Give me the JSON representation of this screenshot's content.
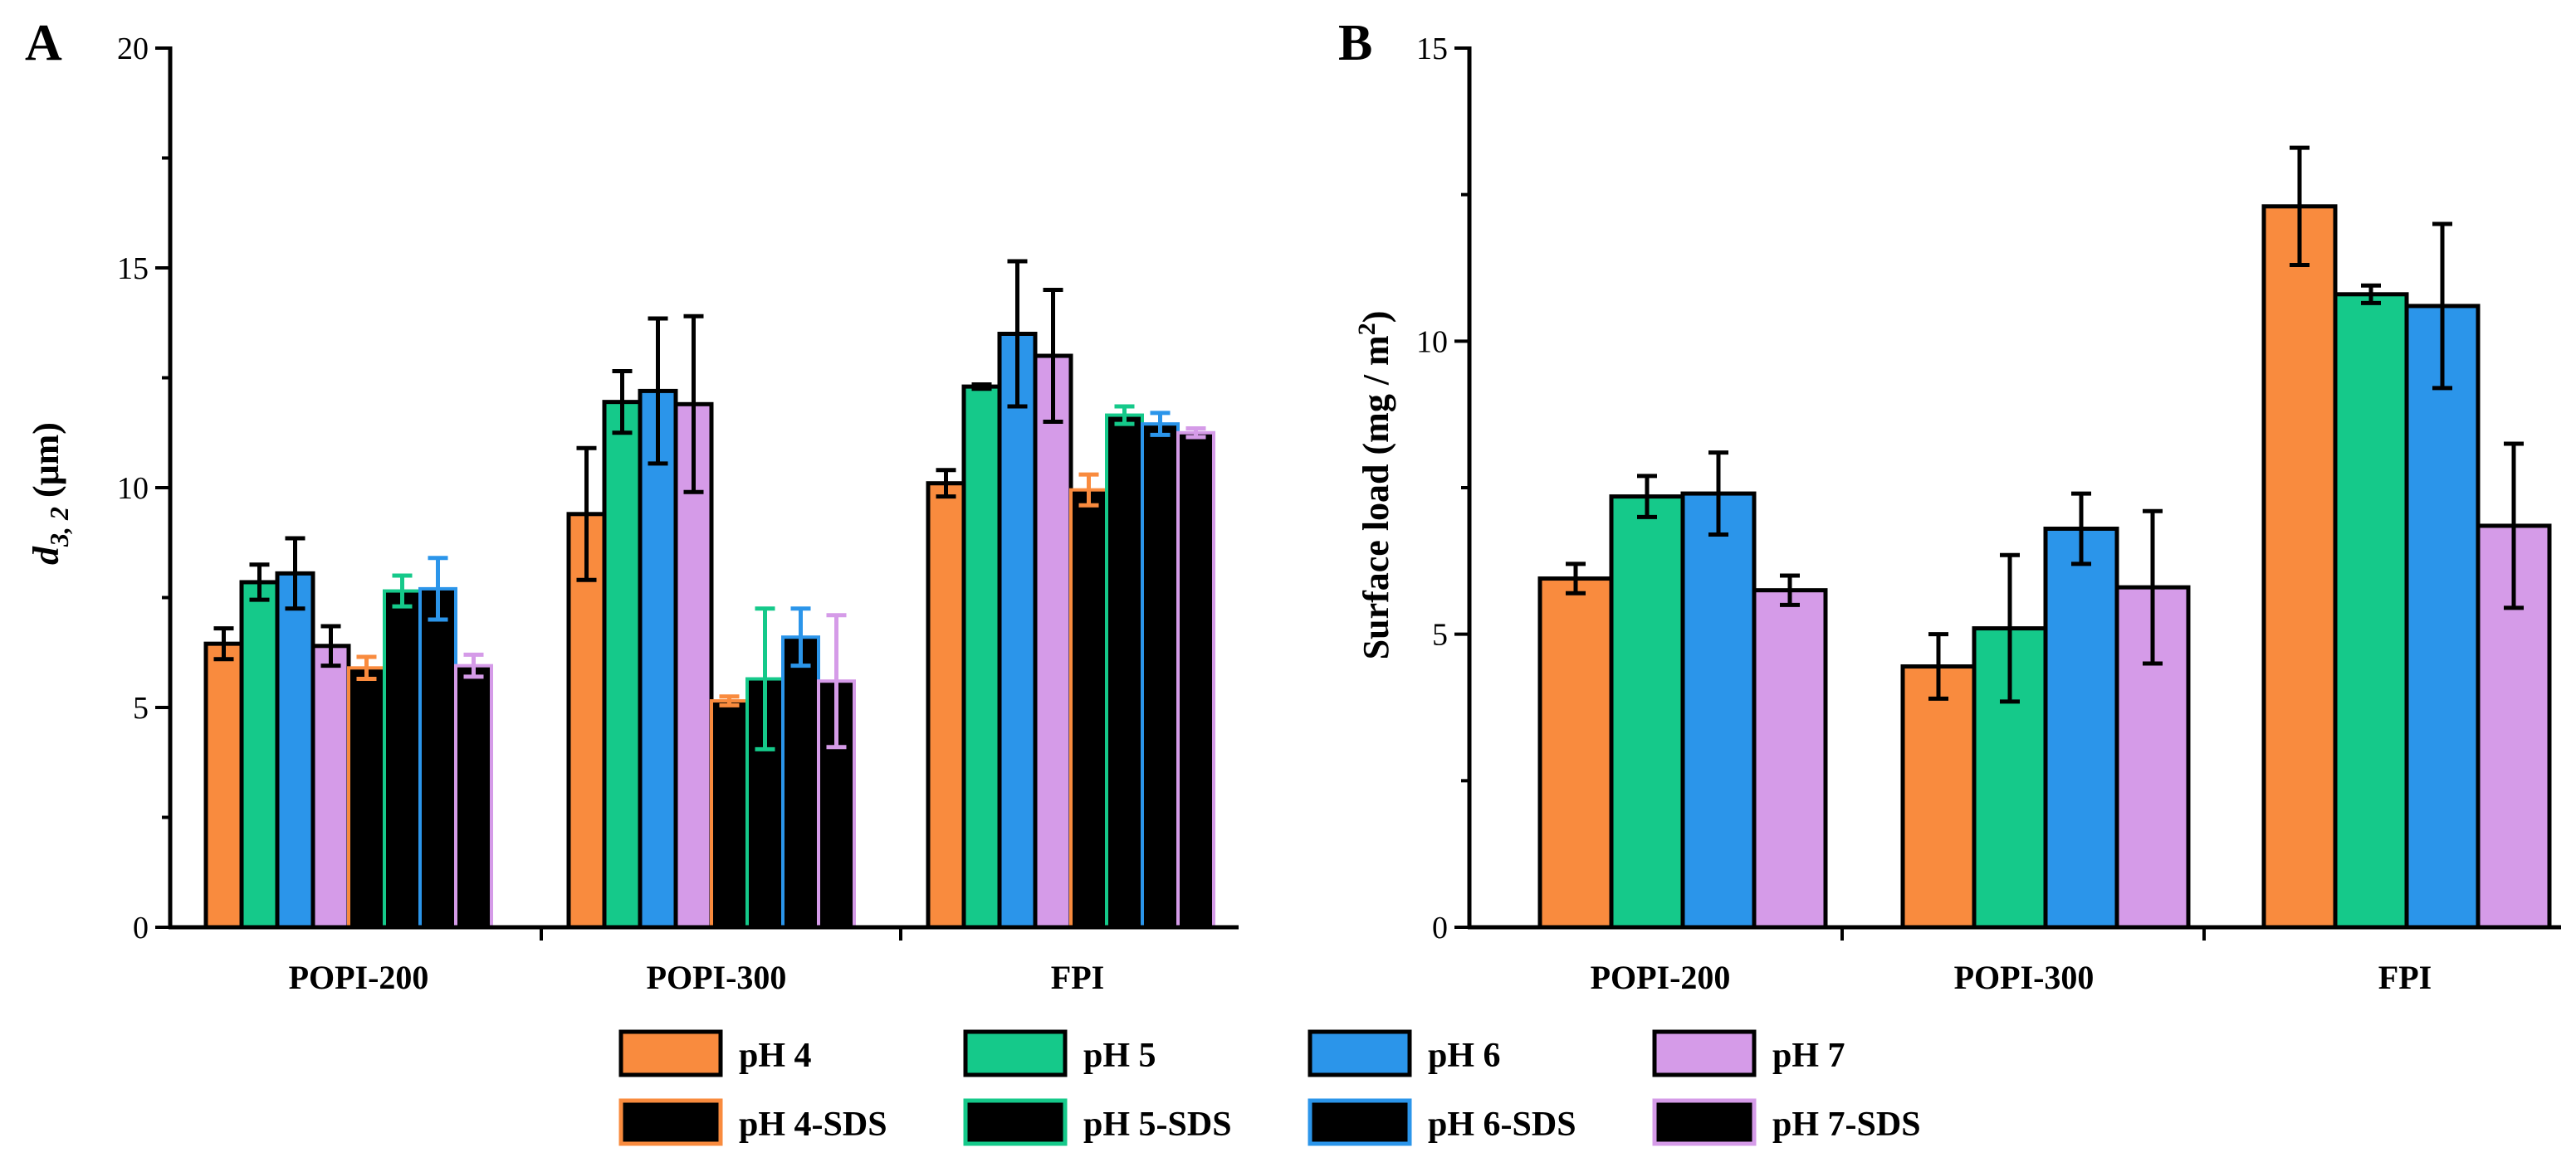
{
  "colors": {
    "pH 4": "#F98B3E",
    "pH 5": "#15C98A",
    "pH 6": "#2B95EA",
    "pH 7": "#D59BE8"
  },
  "legend": {
    "items": [
      "pH 4",
      "pH 5",
      "pH 6",
      "pH 7",
      "pH 4-SDS",
      "pH 5-SDS",
      "pH 6-SDS",
      "pH 7-SDS"
    ]
  },
  "chart_data": [
    {
      "panel": "A",
      "type": "bar",
      "ylabel_main": "d",
      "ylabel_sub": "3, 2",
      "ylabel_unit": " (μm)",
      "ylim": [
        0,
        20
      ],
      "yticks": [
        0,
        5,
        10,
        15,
        20
      ],
      "categories": [
        "POPI-200",
        "POPI-300",
        "FPI"
      ],
      "series": [
        {
          "name": "pH 4",
          "values": [
            6.45,
            9.4,
            10.1
          ],
          "errors": [
            0.35,
            1.5,
            0.3
          ]
        },
        {
          "name": "pH 5",
          "values": [
            7.85,
            11.95,
            12.3
          ],
          "errors": [
            0.4,
            0.7,
            0.05
          ]
        },
        {
          "name": "pH 6",
          "values": [
            8.05,
            12.2,
            13.5
          ],
          "errors": [
            0.8,
            1.65,
            1.65
          ]
        },
        {
          "name": "pH 7",
          "values": [
            6.4,
            11.9,
            13.0
          ],
          "errors": [
            0.45,
            2.0,
            1.5
          ]
        },
        {
          "name": "pH 4-SDS",
          "values": [
            5.9,
            5.15,
            9.95
          ],
          "errors": [
            0.25,
            0.1,
            0.35
          ]
        },
        {
          "name": "pH 5-SDS",
          "values": [
            7.65,
            5.65,
            11.65
          ],
          "errors": [
            0.35,
            1.6,
            0.2
          ]
        },
        {
          "name": "pH 6-SDS",
          "values": [
            7.7,
            6.6,
            11.45
          ],
          "errors": [
            0.7,
            0.65,
            0.25
          ]
        },
        {
          "name": "pH 7-SDS",
          "values": [
            5.95,
            5.6,
            11.25
          ],
          "errors": [
            0.25,
            1.5,
            0.1
          ]
        }
      ]
    },
    {
      "panel": "B",
      "type": "bar",
      "ylabel_main": "Surface load (mg / m",
      "ylabel_sup": "2",
      "ylabel_end": ")",
      "ylim": [
        0,
        15
      ],
      "yticks": [
        0,
        5,
        10,
        15
      ],
      "categories": [
        "POPI-200",
        "POPI-300",
        "FPI"
      ],
      "series": [
        {
          "name": "pH 4",
          "values": [
            5.95,
            4.45,
            12.3
          ],
          "errors": [
            0.25,
            0.55,
            1.0
          ]
        },
        {
          "name": "pH 5",
          "values": [
            7.35,
            5.1,
            10.8
          ],
          "errors": [
            0.35,
            1.25,
            0.15
          ]
        },
        {
          "name": "pH 6",
          "values": [
            7.4,
            6.8,
            10.6
          ],
          "errors": [
            0.7,
            0.6,
            1.4
          ]
        },
        {
          "name": "pH 7",
          "values": [
            5.75,
            5.8,
            6.85
          ],
          "errors": [
            0.25,
            1.3,
            1.4
          ]
        }
      ]
    }
  ]
}
